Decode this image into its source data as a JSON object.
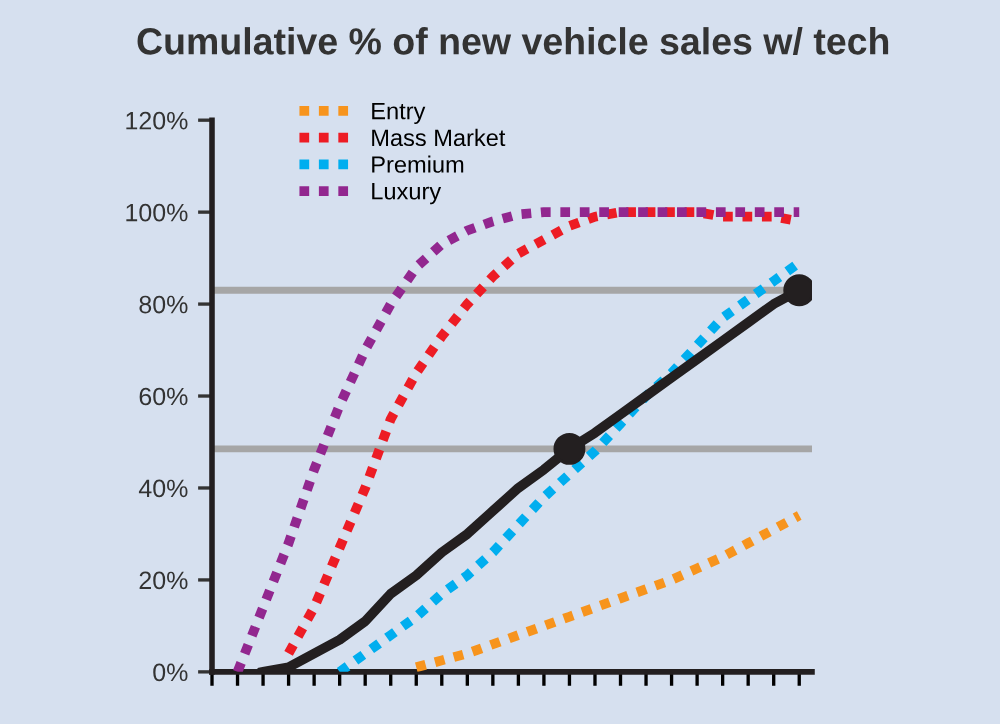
{
  "chart_data": {
    "type": "line",
    "title": "Cumulative % of new vehicle sales w/ tech",
    "categories": [
      null,
      null,
      null,
      null,
      null,
      null,
      null,
      null,
      null,
      null,
      null,
      null,
      null,
      null,
      null,
      null,
      null,
      null,
      null,
      null,
      null,
      null,
      null,
      null
    ],
    "series": [
      {
        "name": "Entry",
        "color": "#f7941d",
        "line_style": "dotted",
        "values": [
          null,
          null,
          null,
          null,
          null,
          null,
          null,
          null,
          1,
          2.5,
          4,
          6,
          8,
          10,
          12,
          14,
          16,
          18,
          20,
          22.5,
          25,
          28,
          31,
          34
        ]
      },
      {
        "name": "Mass Market",
        "color": "#ed1c24",
        "line_style": "dotted",
        "values": [
          null,
          null,
          null,
          4,
          14,
          27,
          40,
          55,
          65,
          73,
          80,
          86,
          91,
          94,
          97,
          99,
          100,
          100,
          100,
          100,
          99,
          99,
          99,
          98
        ]
      },
      {
        "name": "Premium",
        "color": "#00aeef",
        "line_style": "dotted",
        "values": [
          null,
          null,
          null,
          null,
          null,
          0,
          4,
          8,
          12,
          17,
          21,
          26,
          32,
          38,
          43,
          48,
          54,
          60,
          65,
          71,
          77,
          81,
          85,
          89
        ]
      },
      {
        "name": "Luxury",
        "color": "#92278f",
        "line_style": "dotted",
        "values": [
          null,
          0,
          14,
          28,
          44,
          58,
          70,
          80,
          88,
          93,
          96,
          98,
          99.5,
          100,
          100,
          100,
          100,
          100,
          100,
          100,
          100,
          100,
          100,
          100
        ]
      },
      {
        "color": "#231f20",
        "line_style": "solid",
        "values": [
          null,
          null,
          0,
          1,
          4,
          7,
          11,
          17,
          21,
          26,
          30,
          35,
          40,
          44,
          48.5,
          52,
          56,
          60,
          64,
          68,
          72,
          76,
          80,
          83
        ]
      },
      {
        "type": "scatter",
        "color": "#231f20",
        "marker": "circle",
        "values": [
          null,
          null,
          null,
          null,
          null,
          null,
          null,
          null,
          null,
          null,
          null,
          null,
          null,
          null,
          48.5,
          null,
          null,
          null,
          null,
          null,
          null,
          null,
          null,
          83
        ]
      }
    ],
    "ref_lines": [
      {
        "axis": "y",
        "value": 48.5,
        "color": "#a6a6a6"
      },
      {
        "axis": "y",
        "value": 83,
        "color": "#a6a6a6"
      }
    ],
    "ylim": [
      0,
      120
    ],
    "yticks": [
      {
        "value": 0,
        "label": "0%"
      },
      {
        "value": 20,
        "label": "20%"
      },
      {
        "value": 40,
        "label": "40%"
      },
      {
        "value": 60,
        "label": "60%"
      },
      {
        "value": 80,
        "label": "80%"
      },
      {
        "value": 100,
        "label": "100%"
      },
      {
        "value": 120,
        "label": "120%"
      }
    ],
    "tick_labels": "y",
    "grid": false,
    "legend": "top left"
  }
}
